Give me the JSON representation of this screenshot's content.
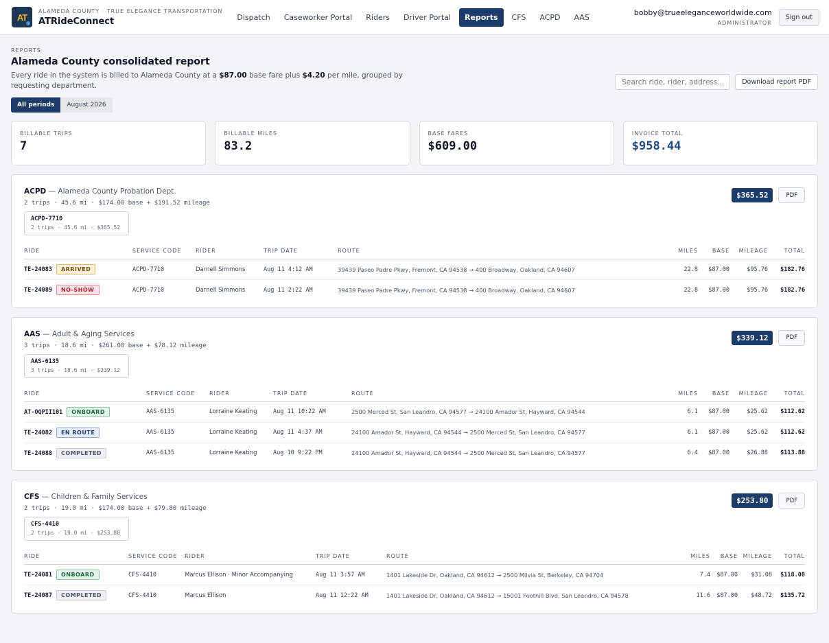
{
  "header": {
    "logo_text": "AT",
    "org": "ALAMEDA COUNTY · TRUE ELEGANCE TRANSPORTATION",
    "app_name": "ATRideConnect",
    "nav": [
      {
        "label": "Dispatch"
      },
      {
        "label": "Caseworker Portal"
      },
      {
        "label": "Riders"
      },
      {
        "label": "Driver Portal"
      },
      {
        "label": "Reports",
        "active": true
      },
      {
        "label": "CFS"
      },
      {
        "label": "ACPD"
      },
      {
        "label": "AAS"
      }
    ],
    "user_email": "bobby@trueeleganceworldwide.com",
    "user_role": "ADMINISTRATOR",
    "signout_label": "Sign out"
  },
  "page": {
    "eyebrow": "REPORTS",
    "title": "Alameda County consolidated report",
    "desc_pre": "Every ride in the system is billed to Alameda County at a ",
    "base_fare": "$87.00",
    "desc_mid": " base fare plus ",
    "per_mile": "$4.20",
    "desc_post": " per mile, grouped by requesting department.",
    "search_placeholder": "Search ride, rider, address...",
    "download_label": "Download report PDF",
    "periods": [
      "All periods",
      "August 2026"
    ]
  },
  "stats": [
    {
      "label": "BILLABLE TRIPS",
      "value": "7"
    },
    {
      "label": "BILLABLE MILES",
      "value": "83.2"
    },
    {
      "label": "BASE FARES",
      "value": "$609.00"
    },
    {
      "label": "INVOICE TOTAL",
      "value": "$958.44"
    }
  ],
  "columns": [
    "RIDE",
    "SERVICE CODE",
    "RIDER",
    "TRIP DATE",
    "ROUTE",
    "MILES",
    "BASE",
    "MILEAGE",
    "TOTAL"
  ],
  "pdf_label": "PDF",
  "departments": [
    {
      "code": "ACPD",
      "name": " — Alameda County Probation Dept.",
      "summary": "2 trips · 45.6 mi · $174.00 base + $191.52 mileage",
      "total": "$365.52",
      "service_code": "ACPD-7710",
      "service_meta": "2 trips · 45.6 mi · $365.52",
      "rows": [
        {
          "ride": "TE-24083",
          "status": "ARRIVED",
          "cls": "b-arrived",
          "code": "ACPD-7710",
          "rider": "Darnell Simmons",
          "date": "Aug 11 4:12 AM",
          "route": "39439 Paseo Padre Pkwy, Fremont, CA 94538 → 400 Broadway, Oakland, CA 94607",
          "miles": "22.8",
          "base": "$87.00",
          "mileage": "$95.76",
          "total": "$182.76"
        },
        {
          "ride": "TE-24089",
          "status": "NO-SHOW",
          "cls": "b-noshow",
          "code": "ACPD-7710",
          "rider": "Darnell Simmons",
          "date": "Aug 11 2:22 AM",
          "route": "39439 Paseo Padre Pkwy, Fremont, CA 94538 → 400 Broadway, Oakland, CA 94607",
          "miles": "22.8",
          "base": "$87.00",
          "mileage": "$95.76",
          "total": "$182.76"
        }
      ]
    },
    {
      "code": "AAS",
      "name": " — Adult & Aging Services",
      "summary": "3 trips · 18.6 mi · $261.00 base + $78.12 mileage",
      "total": "$339.12",
      "service_code": "AAS-6135",
      "service_meta": "3 trips · 18.6 mi · $339.12",
      "rows": [
        {
          "ride": "AT-OQPII101",
          "status": "ONBOARD",
          "cls": "b-onboard",
          "code": "AAS-6135",
          "rider": "Lorraine Keating",
          "date": "Aug 11 10:22 AM",
          "route": "2500 Merced St, San Leandro, CA 94577 → 24100 Amador St, Hayward, CA 94544",
          "miles": "6.1",
          "base": "$87.00",
          "mileage": "$25.62",
          "total": "$112.62"
        },
        {
          "ride": "TE-24082",
          "status": "EN ROUTE",
          "cls": "b-enroute",
          "code": "AAS-6135",
          "rider": "Lorraine Keating",
          "date": "Aug 11 4:37 AM",
          "route": "24100 Amador St, Hayward, CA 94544 → 2500 Merced St, San Leandro, CA 94577",
          "miles": "6.1",
          "base": "$87.00",
          "mileage": "$25.62",
          "total": "$112.62"
        },
        {
          "ride": "TE-24088",
          "status": "COMPLETED",
          "cls": "b-completed",
          "code": "AAS-6135",
          "rider": "Lorraine Keating",
          "date": "Aug 10 9:22 PM",
          "route": "24100 Amador St, Hayward, CA 94544 → 2500 Merced St, San Leandro, CA 94577",
          "miles": "6.4",
          "base": "$87.00",
          "mileage": "$26.88",
          "total": "$113.88"
        }
      ]
    },
    {
      "code": "CFS",
      "name": " — Children & Family Services",
      "summary": "2 trips · 19.0 mi · $174.00 base + $79.80 mileage",
      "total": "$253.80",
      "service_code": "CFS-4410",
      "service_meta": "2 trips · 19.0 mi · $253.80",
      "rows": [
        {
          "ride": "TE-24081",
          "status": "ONBOARD",
          "cls": "b-onboard",
          "code": "CFS-4410",
          "rider": "Marcus Ellison · Minor Accompanying",
          "date": "Aug 11 3:57 AM",
          "route": "1401 Lakeside Dr, Oakland, CA 94612 → 2500 Milvia St, Berkeley, CA 94704",
          "miles": "7.4",
          "base": "$87.00",
          "mileage": "$31.08",
          "total": "$118.08"
        },
        {
          "ride": "TE-24087",
          "status": "COMPLETED",
          "cls": "b-completed",
          "code": "CFS-4410",
          "rider": "Marcus Ellison",
          "date": "Aug 11 12:22 AM",
          "route": "1401 Lakeside Dr, Oakland, CA 94612 → 15001 Foothill Blvd, San Leandro, CA 94578",
          "miles": "11.6",
          "base": "$87.00",
          "mileage": "$48.72",
          "total": "$135.72"
        }
      ]
    }
  ]
}
